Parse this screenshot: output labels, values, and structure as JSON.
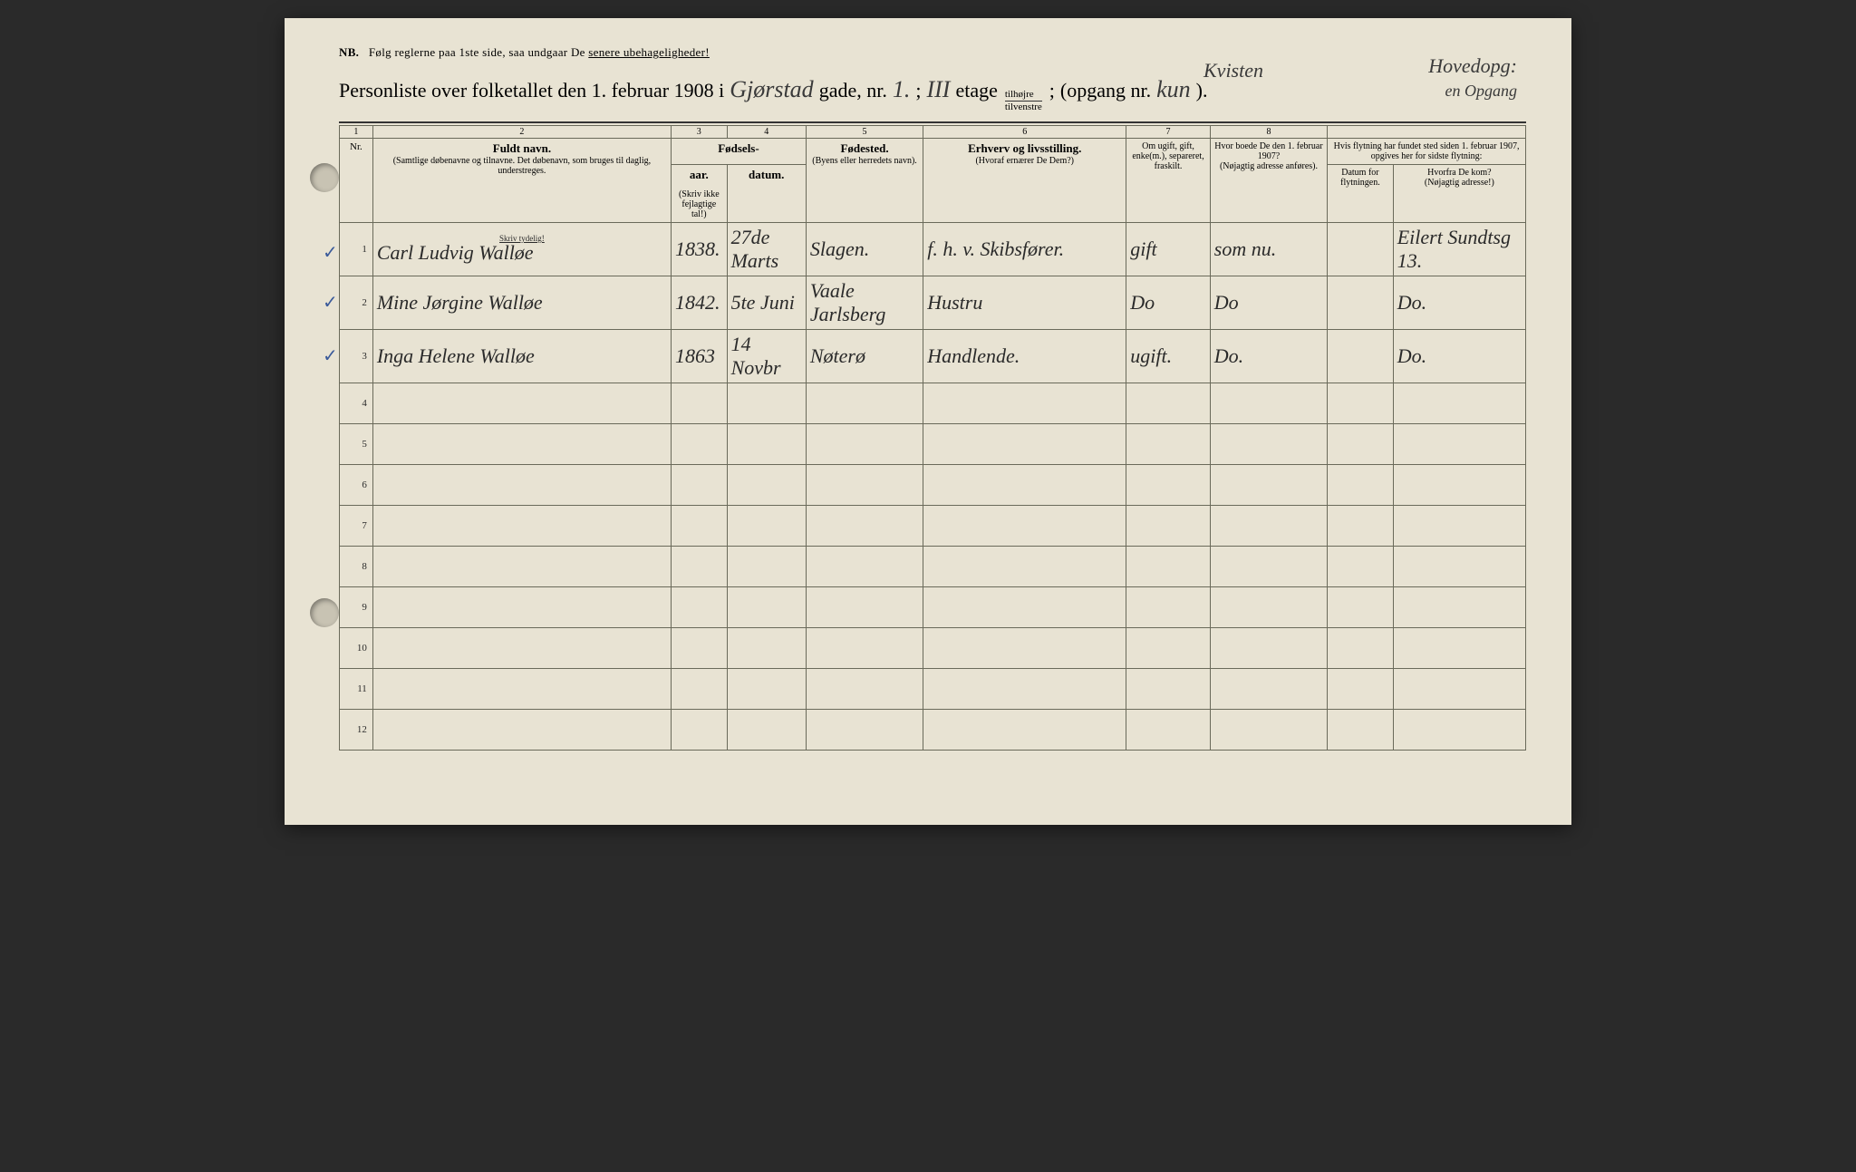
{
  "nb": {
    "label": "NB.",
    "text_prefix": "Følg reglerne paa 1ste side, saa undgaar De ",
    "text_underlined": "senere ubehageligheder!"
  },
  "title": {
    "prefix": "Personliste over folketallet den 1. februar 1908 i",
    "street_written": "Gjørstad",
    "gade": "gade, nr.",
    "nr_written": "1.",
    "semicolon": ";",
    "etage_written": "III",
    "etage_print": "etage",
    "frac_top": "tilhøjre",
    "frac_bot": "tilvenstre",
    "semicolon2": ";",
    "opgang_print": "(opgang nr.",
    "opgang_written": "kun",
    "close": ")."
  },
  "annot": {
    "kvisten": "Kvisten",
    "hoved": "Hovedopg:",
    "opgang": "en Opgang"
  },
  "headers": {
    "colnums": [
      "1",
      "2",
      "3",
      "4",
      "5",
      "6",
      "7",
      "8",
      "",
      ""
    ],
    "nr": "Nr.",
    "fuldt_navn": "Fuldt navn.",
    "navn_sub": "(Samtlige døbenavne og tilnavne. Det døbenavn, som bruges til daglig, understreges.",
    "fodsels": "Fødsels-",
    "aar": "aar.",
    "datum": "datum.",
    "skriv_fejl": "(Skriv ikke fejlagtige tal!)",
    "fodested": "Fødested.",
    "fodested_sub": "(Byens eller herredets navn).",
    "erhverv": "Erhverv og livsstilling.",
    "erhverv_sub": "(Hvoraf ernærer De Dem?)",
    "ugift": "Om ugift, gift, enke(m.), separeret, fraskilt.",
    "boede": "Hvor boede De den 1. februar 1907?",
    "boede_sub": "(Nøjagtig adresse anføres).",
    "flytning": "Hvis flytning har fundet sted siden 1. februar 1907, opgives her for sidste flytning:",
    "datum_flyt": "Datum for flytningen.",
    "hvorfra": "Hvorfra De kom?",
    "hvorfra_sub": "(Nøjagtig adresse!)",
    "skriv_tydelig": "Skriv tydelig!"
  },
  "rows": [
    {
      "nr": "1",
      "check": "✓",
      "navn": "Carl Ludvig Walløe",
      "aar": "1838.",
      "datum": "27de Marts",
      "sted": "Slagen.",
      "erhverv": "f. h. v. Skibsfører.",
      "gift": "gift",
      "boede": "som nu.",
      "flyt": "",
      "hvorfra": "Eilert Sundtsg 13."
    },
    {
      "nr": "2",
      "check": "✓",
      "navn": "Mine Jørgine Walløe",
      "aar": "1842.",
      "datum": "5te Juni",
      "sted": "Vaale Jarlsberg",
      "erhverv": "Hustru",
      "gift": "Do",
      "boede": "Do",
      "flyt": "",
      "hvorfra": "Do."
    },
    {
      "nr": "3",
      "check": "✓",
      "navn": "Inga Helene Walløe",
      "aar": "1863",
      "datum": "14 Novbr",
      "sted": "Nøterø",
      "erhverv": "Handlende.",
      "gift": "ugift.",
      "boede": "Do.",
      "flyt": "",
      "hvorfra": "Do."
    },
    {
      "nr": "4"
    },
    {
      "nr": "5"
    },
    {
      "nr": "6"
    },
    {
      "nr": "7"
    },
    {
      "nr": "8"
    },
    {
      "nr": "9"
    },
    {
      "nr": "10"
    },
    {
      "nr": "11"
    },
    {
      "nr": "12"
    }
  ]
}
